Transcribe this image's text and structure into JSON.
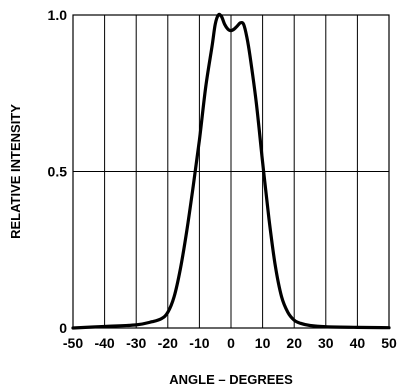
{
  "chart_data": {
    "type": "line",
    "title": "",
    "xlabel": "ANGLE – DEGREES",
    "ylabel": "RELATIVE INTENSITY",
    "xlim": [
      -50,
      50
    ],
    "ylim": [
      0,
      1.0
    ],
    "grid": true,
    "x_ticks": [
      -50,
      -40,
      -30,
      -20,
      -10,
      0,
      10,
      20,
      30,
      40,
      50
    ],
    "y_ticks": [
      0,
      0.5,
      1.0
    ],
    "x_tick_labels": [
      "-50",
      "-40",
      "-30",
      "-20",
      "-10",
      "0",
      "10",
      "20",
      "30",
      "40",
      "50"
    ],
    "y_tick_labels": [
      "0",
      "0.5",
      "1.0"
    ],
    "line_color": "#000000",
    "series": [
      {
        "x": [
          -50,
          -40,
          -30,
          -25,
          -22,
          -20,
          -18,
          -16,
          -14,
          -12,
          -10,
          -8,
          -6,
          -5,
          -4,
          -3,
          -2,
          -1,
          0,
          1,
          2,
          3,
          4,
          5,
          6,
          8,
          10,
          12,
          14,
          16,
          18,
          20,
          22,
          25,
          30,
          40,
          50
        ],
        "y": [
          0,
          0.005,
          0.01,
          0.02,
          0.03,
          0.05,
          0.1,
          0.19,
          0.31,
          0.45,
          0.6,
          0.77,
          0.9,
          0.97,
          1.0,
          0.995,
          0.97,
          0.955,
          0.95,
          0.955,
          0.965,
          0.975,
          0.97,
          0.93,
          0.87,
          0.72,
          0.53,
          0.35,
          0.2,
          0.1,
          0.05,
          0.025,
          0.015,
          0.008,
          0.004,
          0.002,
          0.001
        ]
      }
    ]
  }
}
